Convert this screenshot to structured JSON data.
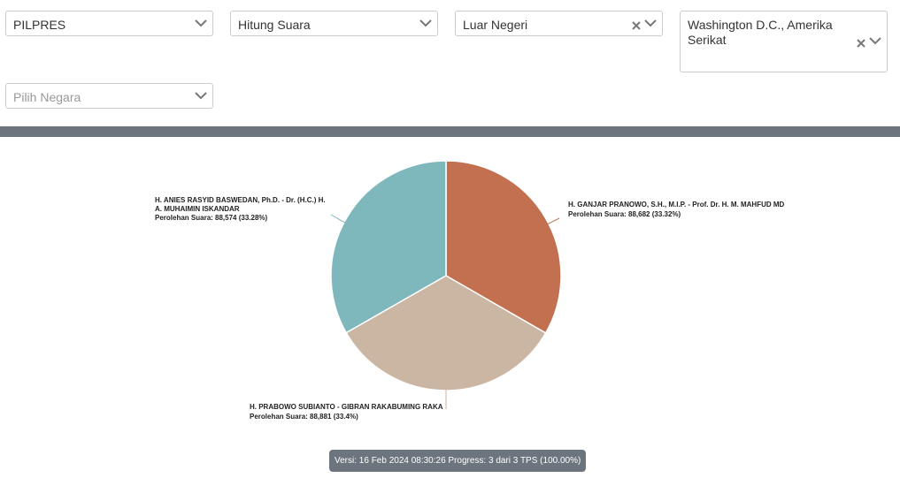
{
  "filters": {
    "election": {
      "value": "PILPRES"
    },
    "mode": {
      "value": "Hitung Suara"
    },
    "region": {
      "value": "Luar Negeri",
      "clearable": true
    },
    "city": {
      "value": "Washington D.C., Amerika Serikat",
      "clearable": true
    },
    "country": {
      "placeholder": "Pilih Negara"
    }
  },
  "colors": {
    "bar": "#6c757d",
    "ganjar": "#c2704f",
    "prabowo": "#cbb5a3",
    "anies": "#7fb8bc"
  },
  "chart_data": {
    "type": "pie",
    "slices": [
      {
        "name": "H. GANJAR PRANOWO, S.H., M.I.P. - Prof. Dr. H. M. MAHFUD MD",
        "detail": "Perolehan Suara: 88,682 (33.32%)",
        "value": 88682,
        "percent": 33.32,
        "color": "#c2704f"
      },
      {
        "name": "H. PRABOWO SUBIANTO - GIBRAN RAKABUMING RAKA",
        "detail": "Perolehan Suara: 88,881 (33.4%)",
        "value": 88881,
        "percent": 33.4,
        "color": "#cbb5a3"
      },
      {
        "name_line1": "H. ANIES RASYID BASWEDAN, Ph.D. - Dr. (H.C.) H.",
        "name_line2": "A. MUHAIMIN ISKANDAR",
        "detail": "Perolehan Suara: 88,574 (33.28%)",
        "value": 88574,
        "percent": 33.28,
        "color": "#7fb8bc"
      }
    ]
  },
  "footer": {
    "version": "Versi: 16 Feb 2024 08:30:26 Progress: 3 dari 3 TPS (100.00%)"
  }
}
